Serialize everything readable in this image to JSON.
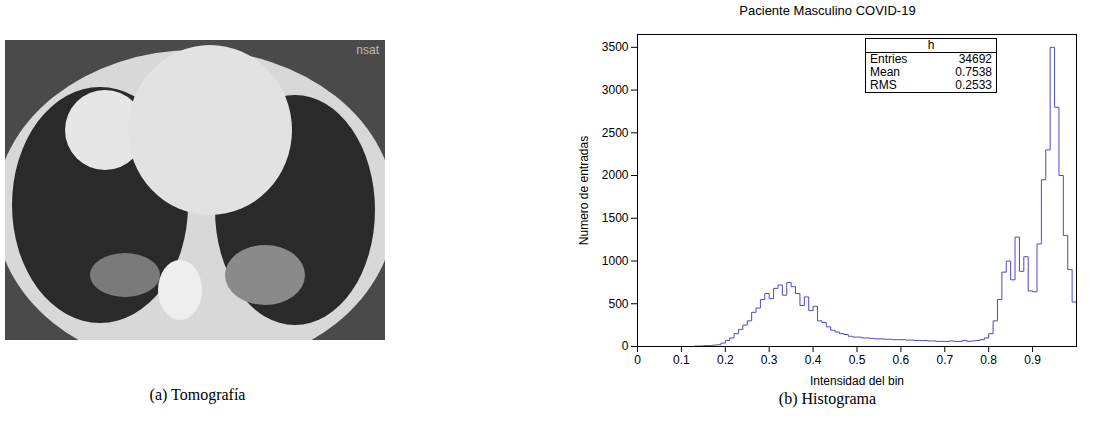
{
  "chart_data": {
    "type": "histogram",
    "title": "Paciente Masculino COVID-19",
    "x_label": "Intensidad del bin",
    "y_label": "Numero de entradas",
    "caption": "(b) Histograma",
    "color": "#4a4ac8",
    "bins": [
      0,
      0.01,
      0.02,
      0.03,
      0.04,
      0.05,
      0.06,
      0.07,
      0.08,
      0.09,
      0.1,
      0.11,
      0.12,
      0.13,
      0.14,
      0.15,
      0.16,
      0.17,
      0.18,
      0.19,
      0.2,
      0.21,
      0.22,
      0.23,
      0.24,
      0.25,
      0.26,
      0.27,
      0.28,
      0.29,
      0.3,
      0.31,
      0.32,
      0.33,
      0.34,
      0.35,
      0.36,
      0.37,
      0.38,
      0.39,
      0.4,
      0.41,
      0.42,
      0.43,
      0.44,
      0.45,
      0.46,
      0.47,
      0.48,
      0.49,
      0.5,
      0.51,
      0.52,
      0.53,
      0.54,
      0.55,
      0.56,
      0.57,
      0.58,
      0.59,
      0.6,
      0.61,
      0.62,
      0.63,
      0.64,
      0.65,
      0.66,
      0.67,
      0.68,
      0.69,
      0.7,
      0.71,
      0.72,
      0.73,
      0.74,
      0.75,
      0.76,
      0.77,
      0.78,
      0.79,
      0.8,
      0.81,
      0.82,
      0.83,
      0.84,
      0.85,
      0.86,
      0.87,
      0.88,
      0.89,
      0.9,
      0.91,
      0.92,
      0.93,
      0.94,
      0.95,
      0.96,
      0.97,
      0.98,
      0.99,
      1
    ],
    "values": [
      0,
      0,
      0,
      0,
      0,
      0,
      0,
      0,
      0,
      0,
      0,
      0,
      0,
      5,
      5,
      10,
      10,
      15,
      20,
      40,
      70,
      100,
      150,
      200,
      250,
      300,
      400,
      450,
      550,
      620,
      560,
      680,
      720,
      600,
      750,
      700,
      620,
      480,
      580,
      420,
      470,
      300,
      280,
      230,
      190,
      170,
      150,
      140,
      120,
      110,
      110,
      100,
      100,
      95,
      90,
      90,
      85,
      85,
      80,
      80,
      80,
      75,
      75,
      70,
      70,
      70,
      65,
      65,
      60,
      60,
      60,
      65,
      60,
      60,
      70,
      60,
      65,
      70,
      80,
      100,
      150,
      300,
      550,
      870,
      1000,
      780,
      1280,
      880,
      1050,
      650,
      640,
      1200,
      1950,
      2300,
      3500,
      2800,
      2000,
      1300,
      900,
      520
    ],
    "xlim": [
      0,
      1
    ],
    "xticks": [
      0,
      0.1,
      0.2,
      0.3,
      0.4,
      0.5,
      0.6,
      0.7,
      0.8,
      0.9
    ],
    "ylim": [
      0,
      3650
    ],
    "yticks": [
      0,
      500,
      1000,
      1500,
      2000,
      2500,
      3000,
      3500
    ],
    "stats_box": {
      "name": "h",
      "rows": [
        {
          "label": "Entries",
          "value": 34692
        },
        {
          "label": "Mean",
          "value": 0.7538
        },
        {
          "label": "RMS",
          "value": 0.2533
        }
      ]
    }
  },
  "image_panel": {
    "caption": "(a) Tomografía",
    "corner_text": "nsat"
  }
}
